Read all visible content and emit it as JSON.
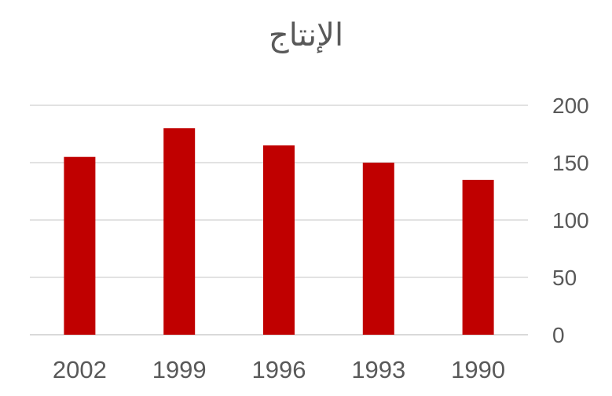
{
  "chart_data": {
    "type": "bar",
    "title": "الإنتاج",
    "categories": [
      "2002",
      "1999",
      "1996",
      "1993",
      "1990"
    ],
    "values": [
      155,
      180,
      165,
      150,
      135
    ],
    "ylim": [
      0,
      200
    ],
    "yticks": [
      "0",
      "50",
      "100",
      "150",
      "200"
    ],
    "y_axis_position": "right",
    "grid": true,
    "legend": "none",
    "bar_color": "#C00000",
    "gridline_color": "#D9D9D9"
  }
}
